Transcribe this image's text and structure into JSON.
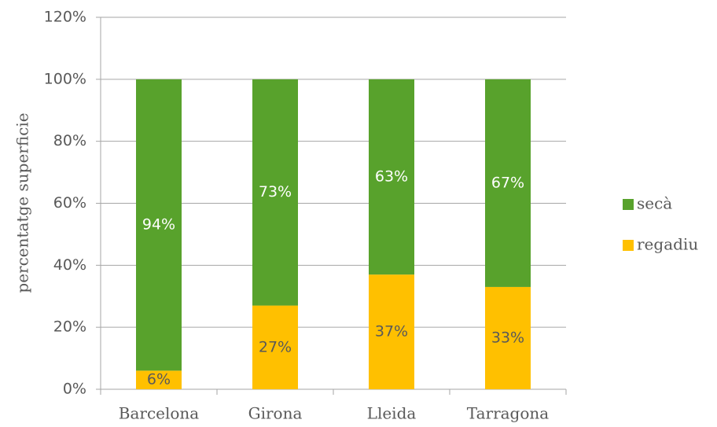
{
  "chart_data": {
    "type": "bar",
    "stacked": true,
    "y_label": "percentatge superficie",
    "categories": [
      "Barcelona",
      "Girona",
      "Lleida",
      "Tarragona"
    ],
    "series": [
      {
        "name": "regadiu",
        "color": "#ffc000",
        "values": [
          6,
          27,
          37,
          33
        ],
        "value_labels": [
          "6%",
          "27%",
          "37%",
          "33%"
        ]
      },
      {
        "name": "secà",
        "color": "#58a22c",
        "values": [
          94,
          73,
          63,
          67
        ],
        "value_labels": [
          "94%",
          "73%",
          "63%",
          "67%"
        ]
      }
    ],
    "ylim": [
      0,
      120
    ],
    "yticks": [
      {
        "value": 0,
        "label": "0%"
      },
      {
        "value": 20,
        "label": "20%"
      },
      {
        "value": 40,
        "label": "40%"
      },
      {
        "value": 60,
        "label": "60%"
      },
      {
        "value": 80,
        "label": "80%"
      },
      {
        "value": 100,
        "label": "100%"
      },
      {
        "value": 120,
        "label": "120%"
      }
    ],
    "grid": true,
    "legend": "right"
  }
}
